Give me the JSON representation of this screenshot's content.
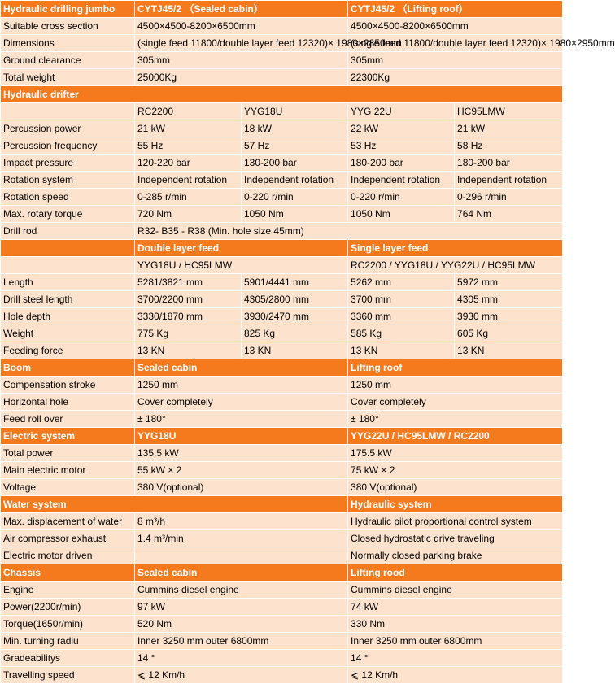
{
  "header": {
    "title": "Hydraulic drilling jumbo",
    "model_a": "CYTJ45/2 （Sealed cabin）",
    "model_b": "CYTJ45/2 （Lifting roof）"
  },
  "general": [
    {
      "label": "Suitable cross section",
      "a": "4500×4500-8200×6500mm",
      "b": "4500×4500-8200×6500mm"
    },
    {
      "label": "Dimensions",
      "a": "(single feed 11800/double layer feed 12320)× 1980×2850mm",
      "b": "(single feed 11800/double layer feed 12320)× 1980×2950mm"
    },
    {
      "label": "Ground clearance",
      "a": "305mm",
      "b": "305mm"
    },
    {
      "label": "Total weight",
      "a": "25000Kg",
      "b": "22300Kg"
    }
  ],
  "drifter": {
    "title": "Hydraulic drifter",
    "models": [
      "RC2200",
      "YYG18U",
      "YYG 22U",
      "HC95LMW"
    ],
    "rows": [
      {
        "label": "Percussion power",
        "v": [
          "21 kW",
          "18 kW",
          "22 kW",
          "21 kW"
        ]
      },
      {
        "label": "Percussion frequency",
        "v": [
          "55 Hz",
          "57 Hz",
          "53 Hz",
          "58 Hz"
        ]
      },
      {
        "label": "Impact pressure",
        "v": [
          "120-220  bar",
          "130-200  bar",
          "180-200  bar",
          "180-200  bar"
        ]
      },
      {
        "label": "Rotation system",
        "v": [
          "Independent rotation",
          "Independent rotation",
          "Independent rotation",
          "Independent rotation"
        ]
      },
      {
        "label": "Rotation speed",
        "v": [
          "0-285 r/min",
          "0-220 r/min",
          "0-220 r/min",
          "0-296 r/min"
        ]
      },
      {
        "label": "Max. rotary torque",
        "v": [
          "720 Nm",
          "1050 Nm",
          "1050 Nm",
          "764 Nm"
        ]
      }
    ],
    "drill_rod_label": "Drill rod",
    "drill_rod_value": "R32- B35 - R38 (Min. hole size 45mm)"
  },
  "feed": {
    "double_title": "Double layer feed",
    "single_title": "Single layer feed",
    "double_models": "YYG18U / HC95LMW",
    "single_models": "RC2200 / YYG18U / YYG22U / HC95LMW",
    "rows": [
      {
        "label": "Length",
        "v": [
          "5281/3821 mm",
          "5901/4441 mm",
          "5262 mm",
          "5972 mm"
        ]
      },
      {
        "label": "Drill steel length",
        "v": [
          "3700/2200 mm",
          "4305/2800 mm",
          "3700 mm",
          "4305 mm"
        ]
      },
      {
        "label": "Hole depth",
        "v": [
          "3330/1870 mm",
          "3930/2470 mm",
          "3360 mm",
          "3930 mm"
        ]
      },
      {
        "label": "Weight",
        "v": [
          "775 Kg",
          "825 Kg",
          "585 Kg",
          "605 Kg"
        ]
      },
      {
        "label": "Feeding force",
        "v": [
          "13 KN",
          "13 KN",
          "13 KN",
          "13 KN"
        ]
      }
    ]
  },
  "boom": {
    "title": "Boom",
    "a": "Sealed cabin",
    "b": "Lifting roof",
    "rows": [
      {
        "label": "Compensation stroke",
        "a": "1250 mm",
        "b": "1250 mm"
      },
      {
        "label": "Horizontal hole",
        "a": "Cover completely",
        "b": "Cover completely"
      },
      {
        "label": "Feed roll over",
        "a": "± 180°",
        "b": "± 180°"
      }
    ]
  },
  "electric": {
    "title": "Electric system",
    "a": "YYG18U",
    "b": "YYG22U / HC95LMW / RC2200",
    "rows": [
      {
        "label": "Total power",
        "a": "135.5 kW",
        "b": "175.5 kW"
      },
      {
        "label": "Main electric motor",
        "a": "55 kW × 2",
        "b": "75 kW × 2"
      },
      {
        "label": "Voltage",
        "a": "380 V(optional)",
        "b": "380 V(optional)"
      }
    ]
  },
  "water": {
    "title": "Water system",
    "b_title": "Hydraulic system",
    "rows": [
      {
        "label": "Max. displacement of water",
        "a": "8 m³/h",
        "b": "Hydraulic pilot proportional control system"
      },
      {
        "label": "Air compressor exhaust",
        "a": "1.4 m³/min",
        "b": "Closed hydrostatic drive traveling"
      },
      {
        "label": "Electric motor driven",
        "a": "",
        "b": "Normally closed parking brake"
      }
    ]
  },
  "chassis": {
    "title": "Chassis",
    "a": "Sealed cabin",
    "b": "Lifting rood",
    "rows": [
      {
        "label": "Engine",
        "a": "Cummins diesel engine",
        "b": "Cummins diesel engine"
      },
      {
        "label": "Power(2200r/min)",
        "a": "97 kW",
        "b": "74 kW"
      },
      {
        "label": "Torque(1650r/min)",
        "a": "520 Nm",
        "b": "330 Nm"
      },
      {
        "label": "Min. turning radiu",
        "a": "Inner 3250 mm outer 6800mm",
        "b": "Inner 3250 mm outer 6800mm"
      },
      {
        "label": "Gradeabilitys",
        "a": "14 °",
        "b": "14 °"
      },
      {
        "label": "Travelling speed",
        "a": "⩽ 12 Km/h",
        "b": "⩽ 12 Km/h"
      }
    ]
  }
}
